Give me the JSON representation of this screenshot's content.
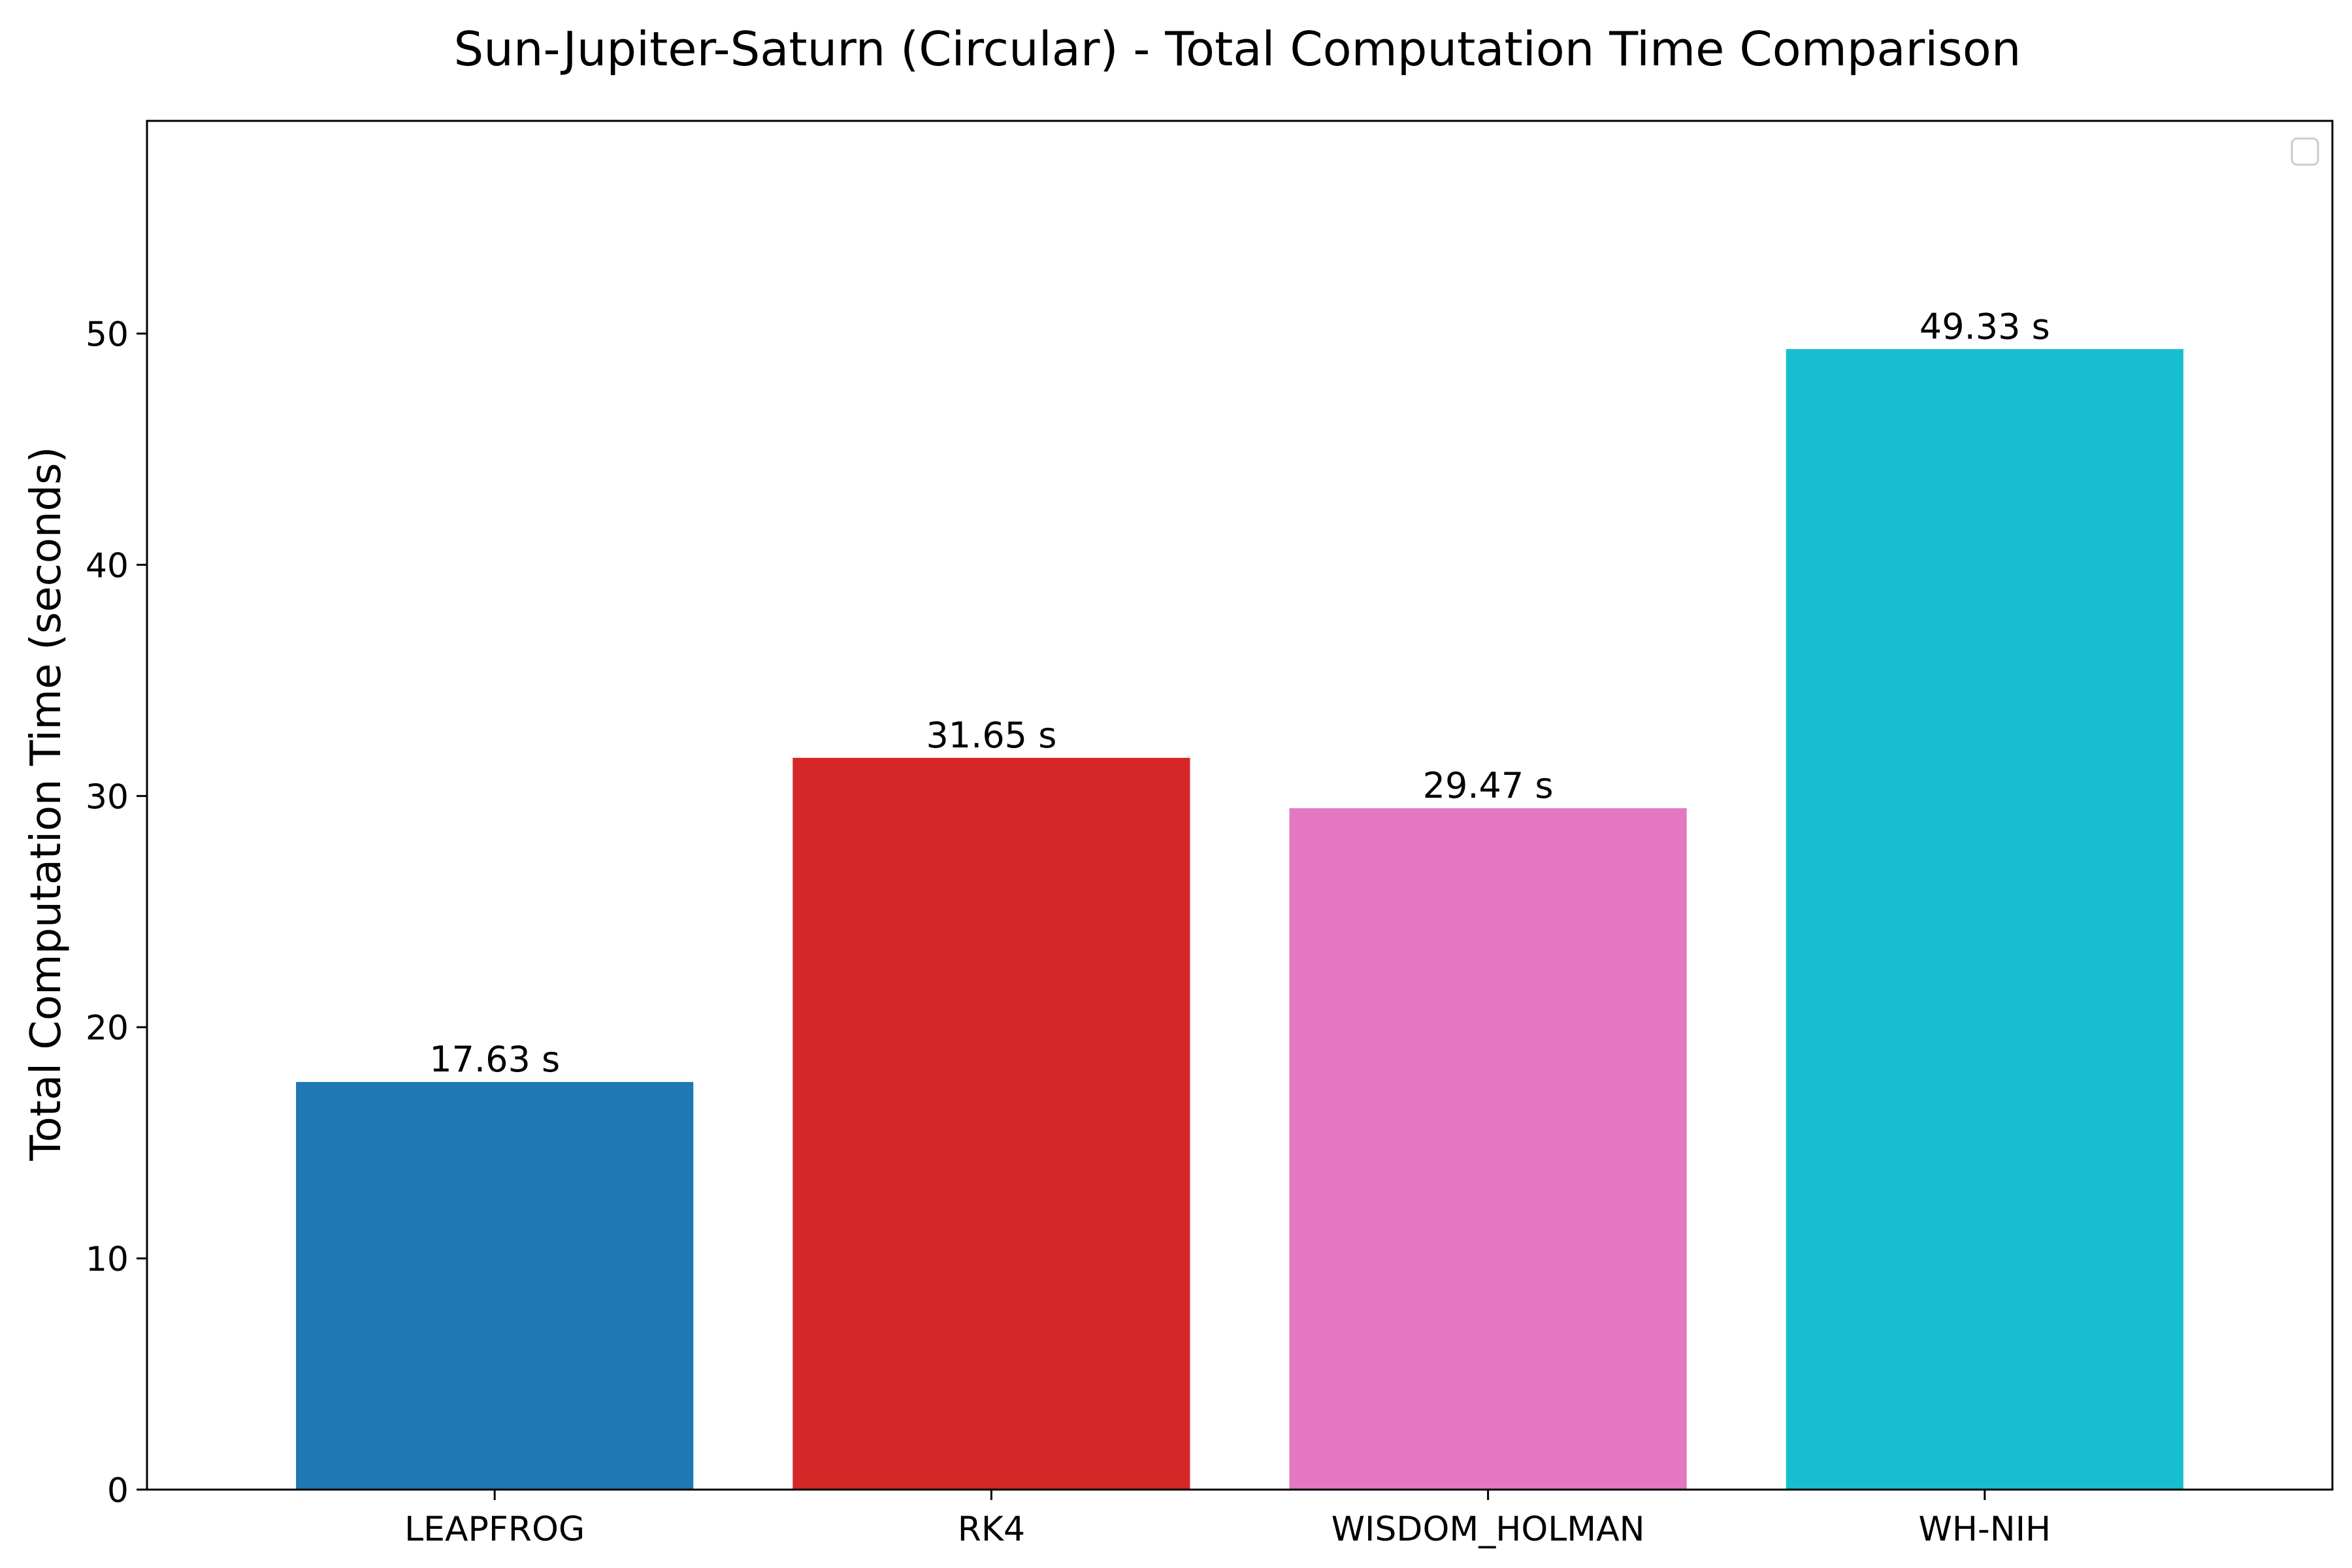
{
  "chart_data": {
    "type": "bar",
    "title": "Sun-Jupiter-Saturn (Circular) - Total Computation Time Comparison",
    "xlabel": "",
    "ylabel": "Total Computation Time (seconds)",
    "categories": [
      "LEAPFROG",
      "RK4",
      "WISDOM_HOLMAN",
      "WH-NIH"
    ],
    "values": [
      17.63,
      31.65,
      29.47,
      49.33
    ],
    "data_labels": [
      "17.63 s",
      "31.65 s",
      "29.47 s",
      "49.33 s"
    ],
    "colors": [
      "#1f77b4",
      "#d62728",
      "#e377c2",
      "#17becf"
    ],
    "ylim": [
      0,
      59.2
    ],
    "yticks": [
      0,
      10,
      20,
      30,
      40,
      50
    ],
    "ytick_labels": [
      "0",
      "10",
      "20",
      "30",
      "40",
      "50"
    ],
    "grid": false,
    "legend": {
      "placement": "top-right",
      "entries": []
    }
  }
}
